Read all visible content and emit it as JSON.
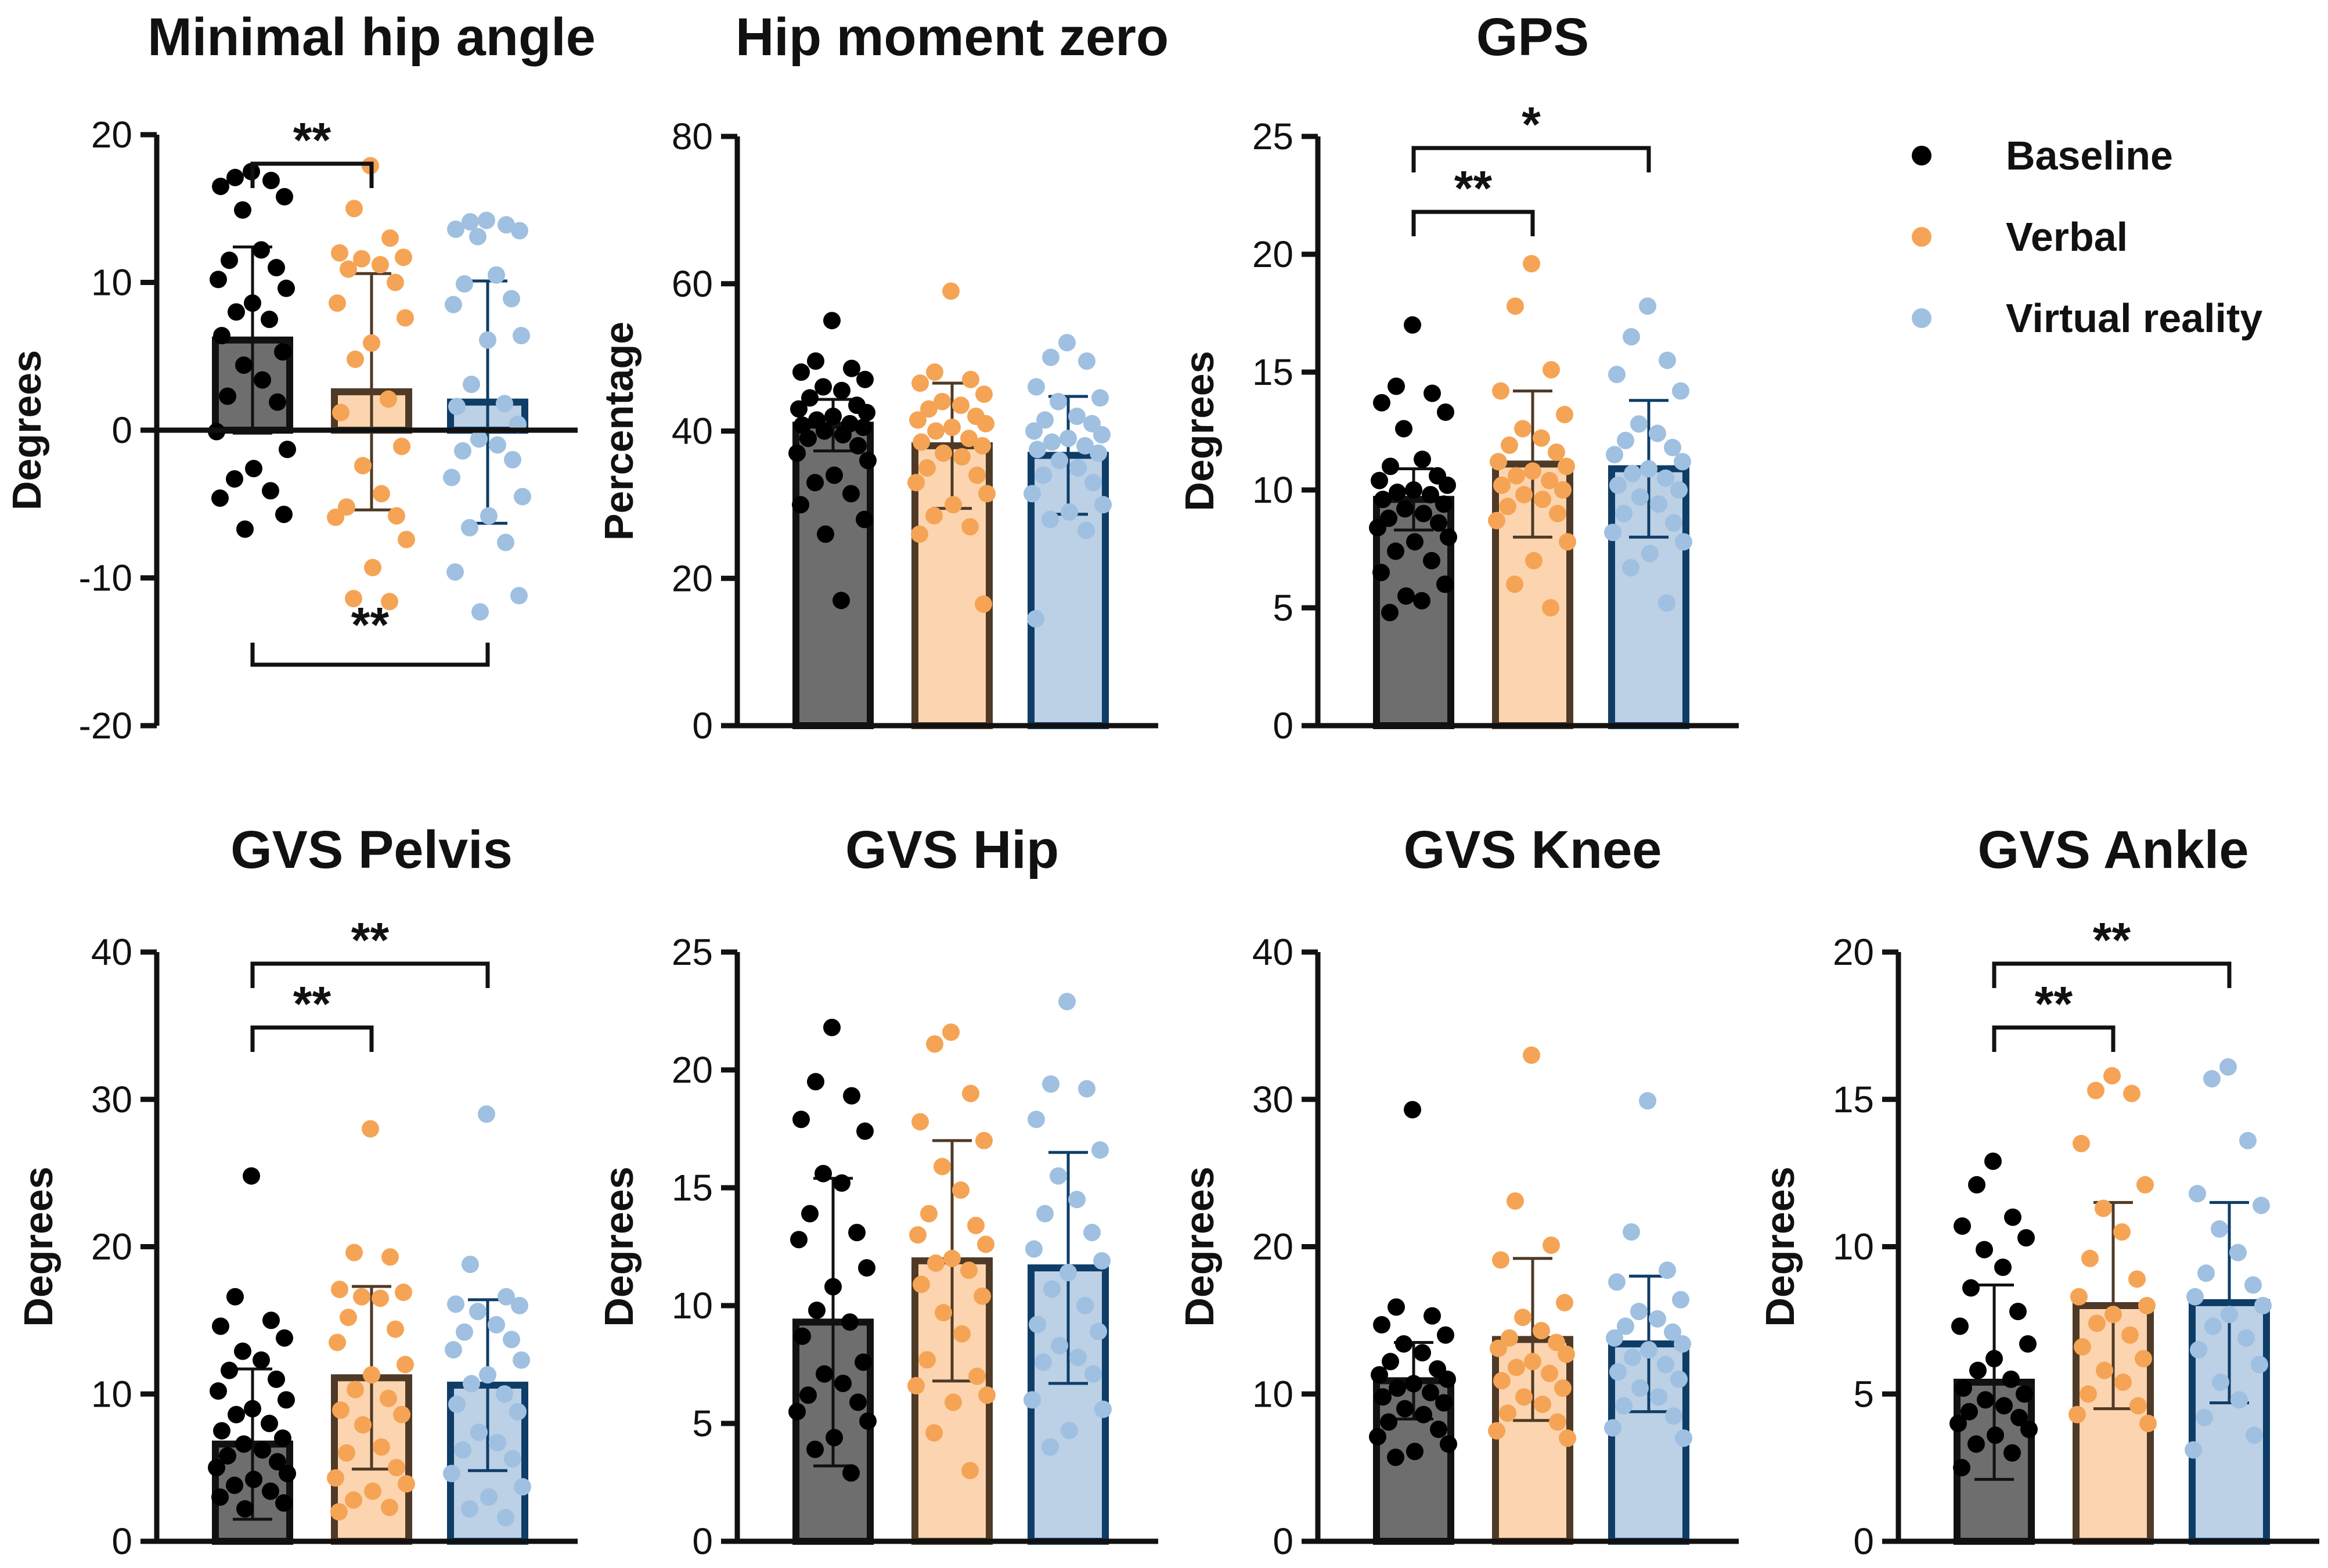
{
  "legend": [
    {
      "label": "Baseline",
      "color": "#000000",
      "bar_fill": "#6e6e6e",
      "bar_stroke": "#111111"
    },
    {
      "label": "Verbal",
      "color": "#f5a455",
      "bar_fill": "#fcd5b0",
      "bar_stroke": "#4f3a27"
    },
    {
      "label": "Virtual reality",
      "color": "#9fc0e0",
      "bar_fill": "#bcd0e6",
      "bar_stroke": "#0e3d67"
    }
  ],
  "chart_data": [
    {
      "type": "bar",
      "title": "Minimal hip angle",
      "ylabel": "Degrees",
      "ylim": [
        -20,
        20
      ],
      "yticks": [
        -20,
        -10,
        0,
        10,
        20
      ],
      "ytick_labels": [
        "-20",
        "-10",
        "0",
        "10",
        "20"
      ],
      "categories": [
        "Baseline",
        "Verbal",
        "Virtual reality"
      ],
      "series": [
        {
          "name": "Baseline",
          "mean": 6.1,
          "sd": 6.3,
          "points": [
            17.5,
            17.1,
            16.9,
            16.5,
            15.8,
            14.9,
            12.2,
            11.5,
            11.0,
            10.2,
            9.6,
            8.6,
            8.0,
            7.5,
            6.4,
            5.3,
            4.4,
            3.4,
            2.3,
            1.9,
            -0.1,
            -1.3,
            -2.6,
            -3.3,
            -4.1,
            -4.6,
            -5.7,
            -6.7
          ]
        },
        {
          "name": "Verbal",
          "mean": 2.6,
          "sd": 8.0,
          "points": [
            17.9,
            15.0,
            13.0,
            12.0,
            11.7,
            11.6,
            11.2,
            10.9,
            10.0,
            8.6,
            7.6,
            5.9,
            4.8,
            2.1,
            1.2,
            -1.1,
            -2.4,
            -4.3,
            -5.2,
            -5.8,
            -5.9,
            -7.4,
            -9.3,
            -11.4,
            -11.6
          ]
        },
        {
          "name": "Virtual reality",
          "mean": 1.9,
          "sd": 8.2,
          "points": [
            14.2,
            14.1,
            13.9,
            13.6,
            13.5,
            13.1,
            10.5,
            9.9,
            8.9,
            8.5,
            6.4,
            6.1,
            3.1,
            1.8,
            1.6,
            0.4,
            -0.6,
            -1.0,
            -1.4,
            -2.0,
            -3.2,
            -4.5,
            -5.8,
            -6.6,
            -7.6,
            -9.6,
            -11.2,
            -12.3
          ]
        }
      ],
      "significance": [
        {
          "from": 0,
          "to": 1,
          "label": "**",
          "position": "above"
        },
        {
          "from": 0,
          "to": 2,
          "label": "**",
          "position": "below"
        }
      ]
    },
    {
      "type": "bar",
      "title": "Hip moment zero",
      "ylabel": "Percentage",
      "ylim": [
        0,
        80
      ],
      "yticks": [
        0,
        20,
        40,
        60,
        80
      ],
      "ytick_labels": [
        "0",
        "20",
        "40",
        "60",
        "80"
      ],
      "categories": [
        "Baseline",
        "Verbal",
        "Virtual reality"
      ],
      "series": [
        {
          "name": "Baseline",
          "mean": 40.8,
          "sd": 3.5,
          "points": [
            55.0,
            49.5,
            48.5,
            48.0,
            47.0,
            46.0,
            45.5,
            44.5,
            43.5,
            43.0,
            42.5,
            42.0,
            41.5,
            41.0,
            40.8,
            40.5,
            40.0,
            39.5,
            39.0,
            38.0,
            37.0,
            36.0,
            34.0,
            33.0,
            31.5,
            30.0,
            28.0,
            26.0,
            17.0
          ]
        },
        {
          "name": "Verbal",
          "mean": 38.0,
          "sd": 8.5,
          "points": [
            59.0,
            48.0,
            47.0,
            46.5,
            45.0,
            44.0,
            43.5,
            43.0,
            42.0,
            41.5,
            41.0,
            40.5,
            40.0,
            39.0,
            38.5,
            38.0,
            37.0,
            36.5,
            35.0,
            34.0,
            33.0,
            31.5,
            30.0,
            28.5,
            27.0,
            26.0,
            16.5
          ]
        },
        {
          "name": "Virtual reality",
          "mean": 36.7,
          "sd": 8.0,
          "points": [
            52.0,
            50.0,
            49.5,
            46.0,
            44.5,
            44.0,
            42.0,
            41.5,
            41.0,
            40.0,
            39.5,
            39.0,
            38.5,
            38.0,
            37.5,
            37.0,
            36.0,
            35.0,
            34.0,
            33.0,
            31.5,
            30.0,
            29.0,
            28.0,
            26.5,
            14.5
          ]
        }
      ],
      "significance": []
    },
    {
      "type": "bar",
      "title": "GPS",
      "ylabel": "Degrees",
      "ylim": [
        0,
        25
      ],
      "yticks": [
        0,
        5,
        10,
        15,
        20,
        25
      ],
      "ytick_labels": [
        "0",
        "5",
        "10",
        "15",
        "20",
        "25"
      ],
      "categories": [
        "Baseline",
        "Verbal",
        "Virtual reality"
      ],
      "series": [
        {
          "name": "Baseline",
          "mean": 9.6,
          "sd": 1.3,
          "points": [
            17.0,
            14.4,
            14.1,
            13.7,
            13.3,
            12.6,
            11.3,
            11.0,
            10.6,
            10.4,
            10.2,
            10.0,
            9.9,
            9.8,
            9.6,
            9.4,
            9.2,
            9.0,
            8.8,
            8.6,
            8.4,
            8.0,
            7.8,
            7.4,
            7.0,
            6.5,
            6.0,
            5.5,
            5.3,
            4.8
          ]
        },
        {
          "name": "Verbal",
          "mean": 11.1,
          "sd": 3.1,
          "points": [
            19.6,
            17.8,
            15.1,
            14.2,
            13.2,
            12.6,
            12.2,
            11.9,
            11.6,
            11.2,
            11.0,
            10.8,
            10.6,
            10.4,
            10.2,
            10.0,
            9.8,
            9.6,
            9.3,
            9.0,
            8.7,
            7.8,
            7.0,
            6.0,
            5.0
          ]
        },
        {
          "name": "Virtual reality",
          "mean": 10.9,
          "sd": 2.9,
          "points": [
            17.8,
            16.5,
            15.5,
            14.9,
            14.2,
            12.8,
            12.4,
            12.1,
            11.8,
            11.5,
            11.2,
            10.9,
            10.7,
            10.5,
            10.2,
            10.0,
            9.7,
            9.4,
            9.0,
            8.6,
            8.2,
            7.8,
            7.3,
            6.7,
            5.2
          ]
        }
      ],
      "significance": [
        {
          "from": 0,
          "to": 1,
          "label": "**",
          "position": "above"
        },
        {
          "from": 0,
          "to": 2,
          "label": "*",
          "position": "above"
        }
      ]
    },
    {
      "type": "bar",
      "title": "GVS Pelvis",
      "ylabel": "Degrees",
      "ylim": [
        0,
        40
      ],
      "yticks": [
        0,
        10,
        20,
        30,
        40
      ],
      "ytick_labels": [
        "0",
        "10",
        "20",
        "30",
        "40"
      ],
      "categories": [
        "Baseline",
        "Verbal",
        "Virtual reality"
      ],
      "series": [
        {
          "name": "Baseline",
          "mean": 6.6,
          "sd": 5.1,
          "points": [
            24.8,
            16.6,
            15.0,
            14.6,
            13.8,
            12.9,
            12.3,
            11.6,
            11.0,
            10.2,
            9.6,
            9.0,
            8.6,
            8.0,
            7.5,
            7.0,
            6.6,
            6.2,
            5.8,
            5.4,
            5.0,
            4.6,
            4.2,
            3.8,
            3.4,
            3.0,
            2.6,
            2.2
          ]
        },
        {
          "name": "Verbal",
          "mean": 11.1,
          "sd": 6.2,
          "points": [
            28.0,
            19.6,
            19.3,
            17.1,
            16.9,
            16.6,
            16.5,
            15.2,
            14.4,
            13.5,
            12.0,
            11.3,
            10.3,
            9.7,
            8.9,
            8.6,
            7.9,
            6.4,
            6.0,
            5.0,
            4.3,
            3.9,
            3.4,
            2.8,
            2.3,
            2.0
          ]
        },
        {
          "name": "Virtual reality",
          "mean": 10.6,
          "sd": 5.8,
          "points": [
            29.0,
            18.8,
            16.6,
            16.1,
            16.0,
            15.6,
            14.7,
            14.2,
            13.7,
            13.0,
            12.3,
            11.3,
            10.7,
            10.0,
            9.3,
            8.8,
            7.4,
            6.7,
            6.2,
            5.6,
            4.6,
            3.7,
            3.0,
            2.2,
            1.6
          ]
        }
      ],
      "significance": [
        {
          "from": 0,
          "to": 1,
          "label": "**",
          "position": "above"
        },
        {
          "from": 0,
          "to": 2,
          "label": "**",
          "position": "above"
        }
      ]
    },
    {
      "type": "bar",
      "title": "GVS Hip",
      "ylabel": "Degrees",
      "ylim": [
        0,
        25
      ],
      "yticks": [
        0,
        5,
        10,
        15,
        20,
        25
      ],
      "ytick_labels": [
        "0",
        "5",
        "10",
        "15",
        "20",
        "25"
      ],
      "categories": [
        "Baseline",
        "Verbal",
        "Virtual reality"
      ],
      "series": [
        {
          "name": "Baseline",
          "mean": 9.3,
          "sd": 6.1,
          "points": [
            21.8,
            19.5,
            18.9,
            17.9,
            17.4,
            15.6,
            15.2,
            13.9,
            13.1,
            12.8,
            11.6,
            10.8,
            9.8,
            9.3,
            8.7,
            7.6,
            7.1,
            6.7,
            6.2,
            5.9,
            5.5,
            5.1,
            4.4,
            3.9,
            2.9
          ]
        },
        {
          "name": "Verbal",
          "mean": 11.9,
          "sd": 5.1,
          "points": [
            21.6,
            21.1,
            19.0,
            17.8,
            17.0,
            15.9,
            14.9,
            13.9,
            13.4,
            13.0,
            12.6,
            12.0,
            11.8,
            11.5,
            10.9,
            10.4,
            9.7,
            8.8,
            7.7,
            7.0,
            6.6,
            6.2,
            5.9,
            4.6,
            3.0
          ]
        },
        {
          "name": "Virtual reality",
          "mean": 11.6,
          "sd": 4.9,
          "points": [
            22.9,
            19.4,
            19.2,
            17.9,
            16.6,
            15.5,
            14.5,
            13.9,
            13.1,
            12.4,
            11.9,
            11.4,
            10.7,
            10.0,
            9.2,
            8.9,
            8.3,
            7.8,
            7.6,
            7.1,
            6.0,
            5.6,
            4.7,
            4.0
          ]
        }
      ],
      "significance": []
    },
    {
      "type": "bar",
      "title": "GVS Knee",
      "ylabel": "Degrees",
      "ylim": [
        0,
        40
      ],
      "yticks": [
        0,
        10,
        20,
        30,
        40
      ],
      "ytick_labels": [
        "0",
        "10",
        "20",
        "30",
        "40"
      ],
      "categories": [
        "Baseline",
        "Verbal",
        "Virtual reality"
      ],
      "series": [
        {
          "name": "Baseline",
          "mean": 10.9,
          "sd": 2.6,
          "points": [
            29.3,
            15.9,
            15.3,
            14.7,
            14.0,
            13.4,
            12.8,
            12.2,
            11.7,
            11.3,
            11.0,
            10.7,
            10.4,
            10.1,
            9.8,
            9.4,
            9.0,
            8.6,
            8.1,
            7.6,
            7.1,
            6.6,
            6.1,
            5.7
          ]
        },
        {
          "name": "Verbal",
          "mean": 13.7,
          "sd": 5.5,
          "points": [
            33.0,
            23.1,
            20.1,
            19.1,
            16.2,
            15.2,
            14.3,
            13.8,
            13.5,
            13.1,
            12.7,
            12.2,
            11.8,
            11.4,
            10.9,
            10.4,
            9.8,
            9.3,
            8.7,
            8.1,
            7.5,
            7.0
          ]
        },
        {
          "name": "Virtual reality",
          "mean": 13.4,
          "sd": 4.6,
          "points": [
            29.9,
            21.0,
            18.4,
            17.6,
            16.4,
            15.6,
            15.1,
            14.6,
            14.2,
            13.8,
            13.4,
            13.0,
            12.5,
            12.0,
            11.5,
            11.0,
            10.4,
            9.8,
            9.2,
            8.5,
            7.7,
            7.0
          ]
        }
      ],
      "significance": []
    },
    {
      "type": "bar",
      "title": "GVS Ankle",
      "ylabel": "Degrees",
      "ylim": [
        0,
        20
      ],
      "yticks": [
        0,
        5,
        10,
        15,
        20
      ],
      "ytick_labels": [
        "0",
        "5",
        "10",
        "15",
        "20"
      ],
      "categories": [
        "Baseline",
        "Verbal",
        "Virtual reality"
      ],
      "series": [
        {
          "name": "Baseline",
          "mean": 5.4,
          "sd": 3.3,
          "points": [
            12.9,
            12.1,
            11.0,
            10.7,
            10.3,
            9.9,
            9.3,
            8.6,
            7.8,
            7.3,
            6.7,
            6.2,
            5.8,
            5.5,
            5.2,
            5.0,
            4.8,
            4.6,
            4.4,
            4.2,
            4.0,
            3.8,
            3.6,
            3.3,
            3.0,
            2.5
          ]
        },
        {
          "name": "Verbal",
          "mean": 8.0,
          "sd": 3.5,
          "points": [
            15.8,
            15.3,
            15.2,
            13.5,
            12.1,
            11.3,
            10.5,
            9.6,
            8.9,
            8.3,
            8.0,
            7.7,
            7.4,
            7.0,
            6.6,
            6.2,
            5.8,
            5.4,
            5.0,
            4.6,
            4.3,
            4.0
          ]
        },
        {
          "name": "Virtual reality",
          "mean": 8.1,
          "sd": 3.4,
          "points": [
            16.1,
            15.7,
            13.6,
            11.8,
            11.4,
            10.6,
            9.8,
            9.1,
            8.7,
            8.3,
            8.0,
            7.7,
            7.3,
            6.9,
            6.5,
            6.0,
            5.4,
            4.8,
            4.2,
            3.6,
            3.1
          ]
        }
      ],
      "significance": [
        {
          "from": 0,
          "to": 1,
          "label": "**",
          "position": "above"
        },
        {
          "from": 0,
          "to": 2,
          "label": "**",
          "position": "above"
        }
      ]
    }
  ]
}
